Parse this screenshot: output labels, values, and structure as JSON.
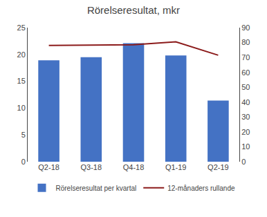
{
  "chart_data": {
    "type": "bar",
    "title": "Rörelseresultat, mkr",
    "categories": [
      "Q2-18",
      "Q3-18",
      "Q4-18",
      "Q1-19",
      "Q2-19"
    ],
    "series": [
      {
        "name": "Rörelseresultat per kvartal",
        "type": "bar",
        "color": "#4472C4",
        "values": [
          18.9,
          19.5,
          22.1,
          19.8,
          11.4
        ]
      },
      {
        "name": "12-månaders rullande",
        "type": "line",
        "axis": "y2",
        "color": "#8B1A1A",
        "values": [
          78.0,
          78.2,
          78.5,
          80.5,
          71.5
        ]
      }
    ],
    "ylim": [
      0,
      25
    ],
    "yticks": [
      0,
      5,
      10,
      15,
      20,
      25
    ],
    "y2lim": [
      0,
      90
    ],
    "y2ticks": [
      0,
      10,
      20,
      30,
      40,
      50,
      60,
      70,
      80,
      90
    ],
    "grid": false,
    "legend": "bottom"
  }
}
